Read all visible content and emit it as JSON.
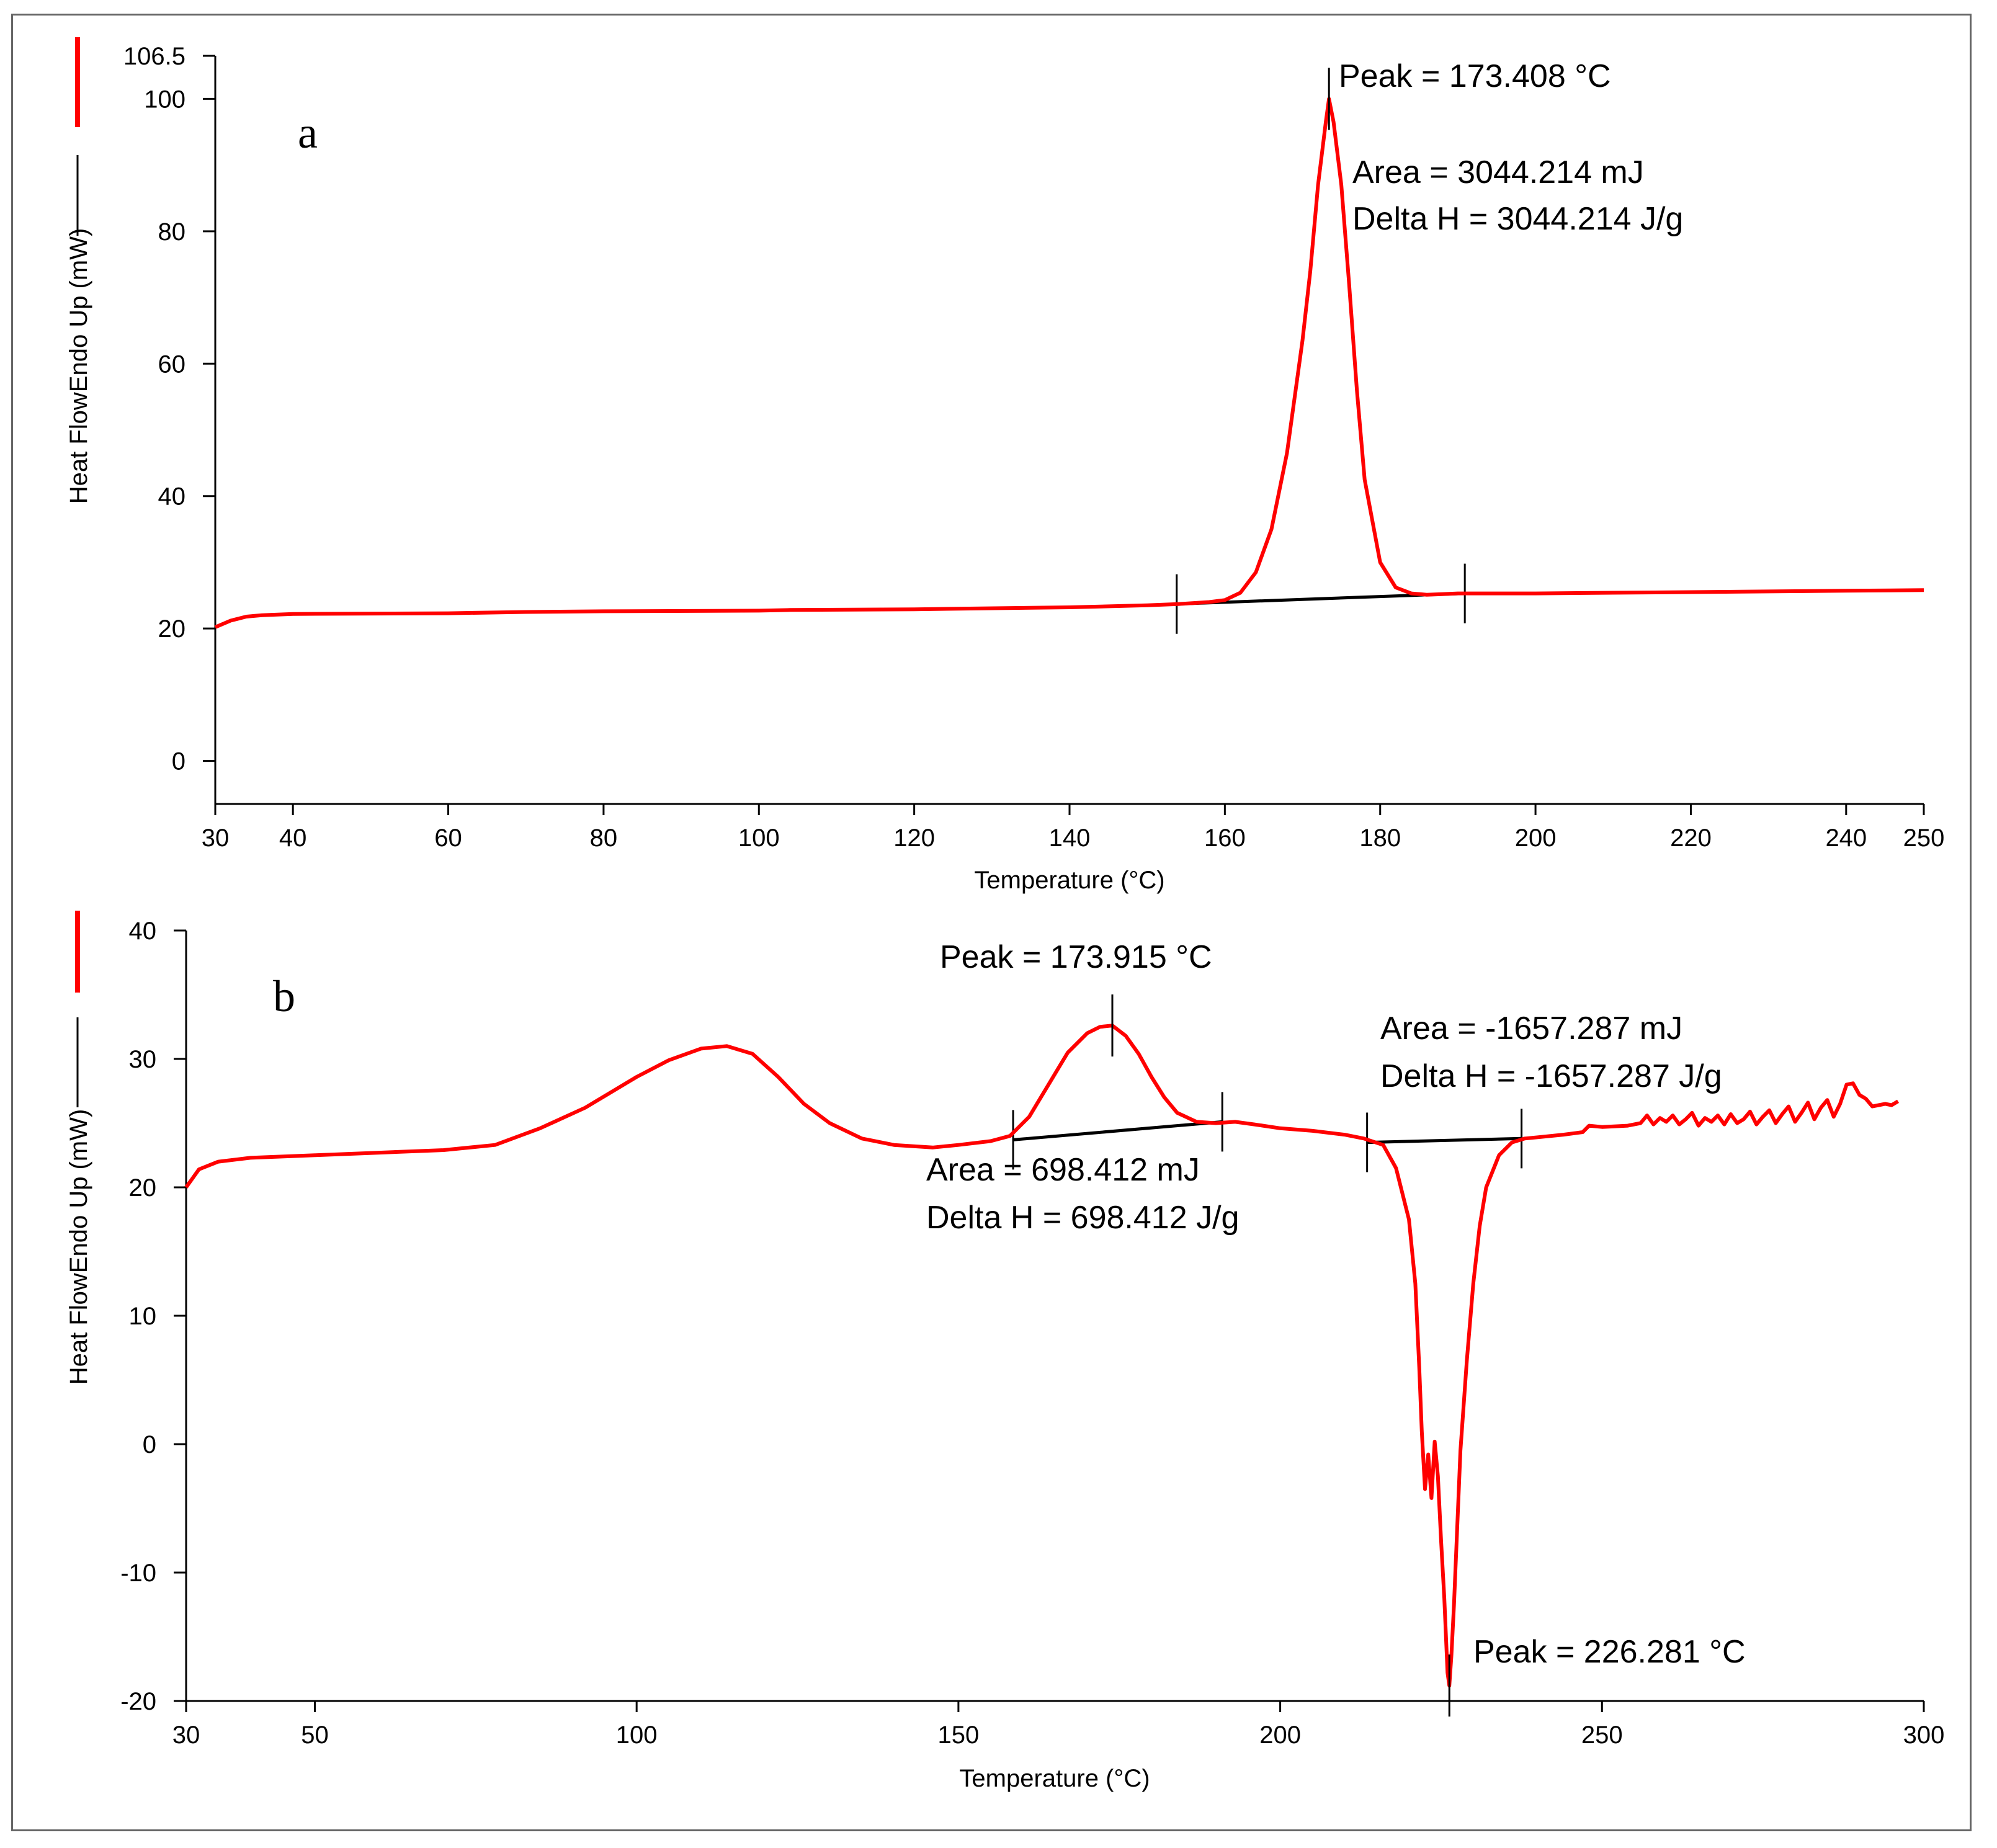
{
  "chart_data": [
    {
      "panel": "a",
      "type": "line",
      "title": "",
      "xlabel": "Temperature (°C)",
      "ylabel": "Heat FlowEndo Up (mW)",
      "xlim": [
        30,
        250
      ],
      "ylim": [
        -6.5,
        106.5
      ],
      "xticks": [
        30,
        40,
        60,
        80,
        100,
        120,
        140,
        160,
        180,
        200,
        220,
        240,
        250
      ],
      "yticks": [
        0,
        20,
        40,
        60,
        80,
        100,
        106.5
      ],
      "grid": false,
      "legend": [
        {
          "label": "",
          "color": "#ff0000"
        },
        {
          "label": "",
          "color": "#000000"
        }
      ],
      "series": [
        {
          "name": "heat-flow",
          "color": "#ff0000",
          "x": [
            30,
            32,
            34,
            36,
            40,
            60,
            70,
            80,
            100,
            104,
            120,
            140,
            150,
            154,
            158,
            160,
            162,
            164,
            166,
            168,
            170,
            171,
            172,
            173,
            173.408,
            174,
            175,
            176,
            177,
            178,
            180,
            182,
            184,
            186,
            188,
            190,
            200,
            210,
            220,
            230,
            240,
            250
          ],
          "y": [
            20.2,
            21.2,
            21.8,
            22.0,
            22.2,
            22.3,
            22.5,
            22.6,
            22.7,
            22.8,
            22.9,
            23.2,
            23.5,
            23.7,
            24.0,
            24.3,
            25.4,
            28.5,
            35.0,
            46.5,
            63.5,
            74.0,
            87.0,
            96.5,
            100.0,
            96.5,
            87.0,
            72.0,
            56.0,
            42.5,
            30.0,
            26.2,
            25.3,
            25.1,
            25.2,
            25.3,
            25.3,
            25.4,
            25.5,
            25.6,
            25.7,
            25.8
          ]
        },
        {
          "name": "baseline",
          "color": "#000000",
          "x": [
            153.8,
            190.9
          ],
          "y": [
            23.7,
            25.3
          ]
        }
      ],
      "limit_markers": [
        153.8,
        190.9
      ],
      "peak_marker": {
        "x": 173.408,
        "y": 100.0
      },
      "annotations": {
        "panel_letter": "a",
        "peak": "Peak = 173.408 °C",
        "area": "Area = 3044.214 mJ",
        "delta_h": "Delta H = 3044.214 J/g"
      }
    },
    {
      "panel": "b",
      "type": "line",
      "title": "",
      "xlabel": "Temperature (°C)",
      "ylabel": "Heat FlowEndo Up (mW)",
      "xlim": [
        30,
        300
      ],
      "ylim": [
        -20,
        40
      ],
      "xticks": [
        30,
        50,
        100,
        150,
        200,
        250,
        300
      ],
      "yticks": [
        -20,
        -10,
        0,
        10,
        20,
        30,
        40
      ],
      "grid": false,
      "legend": [
        {
          "label": "",
          "color": "#ff0000"
        },
        {
          "label": "",
          "color": "#000000"
        }
      ],
      "series": [
        {
          "name": "heat-flow",
          "color": "#ff0000",
          "x": [
            30,
            32,
            35,
            40,
            50,
            60,
            70,
            78,
            85,
            92,
            100,
            105,
            110,
            114,
            118,
            122,
            126,
            130,
            135,
            140,
            146,
            150,
            155,
            158,
            161,
            164,
            167,
            170,
            172,
            173.915,
            176,
            178,
            180,
            182,
            184,
            187,
            190,
            193,
            196,
            200,
            205,
            210,
            213,
            216,
            218,
            220,
            221,
            221.6,
            222,
            222.5,
            223,
            223.5,
            224,
            224.5,
            225,
            225.5,
            226,
            226.281,
            226.6,
            227,
            227.5,
            228,
            229,
            230,
            231,
            232,
            234,
            236,
            238,
            240,
            244,
            247,
            248,
            250,
            254,
            256,
            257,
            258,
            259,
            260,
            261,
            262,
            263,
            264,
            265,
            266,
            267,
            268,
            269,
            270,
            271,
            272,
            273,
            274,
            275,
            276,
            277,
            278,
            279,
            280,
            281,
            282,
            283,
            284,
            285,
            286,
            287,
            288,
            289,
            290,
            291,
            292,
            293,
            294,
            295,
            296
          ],
          "y": [
            20.0,
            21.4,
            22.0,
            22.3,
            22.5,
            22.7,
            22.9,
            23.3,
            24.6,
            26.2,
            28.6,
            29.9,
            30.8,
            31.0,
            30.4,
            28.6,
            26.5,
            25.0,
            23.8,
            23.3,
            23.1,
            23.3,
            23.6,
            24.0,
            25.5,
            28.0,
            30.5,
            32.0,
            32.5,
            32.6,
            31.8,
            30.4,
            28.6,
            27.0,
            25.8,
            25.1,
            25.0,
            25.1,
            24.9,
            24.6,
            24.4,
            24.1,
            23.8,
            23.3,
            21.5,
            17.5,
            12.5,
            6.0,
            1.0,
            -3.5,
            -0.8,
            -4.2,
            0.2,
            -2.5,
            -7.5,
            -12.0,
            -17.8,
            -18.8,
            -16.5,
            -12.5,
            -6.5,
            -0.5,
            6.5,
            12.5,
            17.0,
            20.0,
            22.5,
            23.5,
            23.8,
            23.9,
            24.1,
            24.3,
            24.8,
            24.7,
            24.8,
            25.0,
            25.6,
            24.9,
            25.4,
            25.1,
            25.6,
            24.9,
            25.3,
            25.8,
            24.8,
            25.4,
            25.1,
            25.6,
            24.9,
            25.7,
            25.0,
            25.3,
            25.9,
            24.9,
            25.5,
            26.0,
            25.0,
            25.7,
            26.3,
            25.1,
            25.8,
            26.6,
            25.3,
            26.2,
            26.8,
            25.5,
            26.5,
            28.0,
            28.1,
            27.2,
            26.9,
            26.3,
            26.4,
            26.5,
            26.4,
            26.7
          ]
        },
        {
          "name": "baseline-peak-1",
          "color": "#000000",
          "x": [
            158.5,
            191.0
          ],
          "y": [
            23.7,
            25.1
          ]
        },
        {
          "name": "baseline-peak-2",
          "color": "#000000",
          "x": [
            213.5,
            237.5
          ],
          "y": [
            23.5,
            23.8
          ]
        }
      ],
      "limit_markers": [
        158.5,
        191.0,
        213.5,
        237.5
      ],
      "peak_markers": [
        {
          "x": 173.915,
          "y": 32.6
        },
        {
          "x": 226.281,
          "y": -18.8
        }
      ],
      "annotations": {
        "panel_letter": "b",
        "peak1": "Peak = 173.915 °C",
        "area1": "Area = 698.412 mJ",
        "delta_h1": "Delta H = 698.412 J/g",
        "area2": "Area = -1657.287 mJ",
        "delta_h2": "Delta H = -1657.287 J/g",
        "peak2": "Peak = 226.281 °C"
      }
    }
  ]
}
